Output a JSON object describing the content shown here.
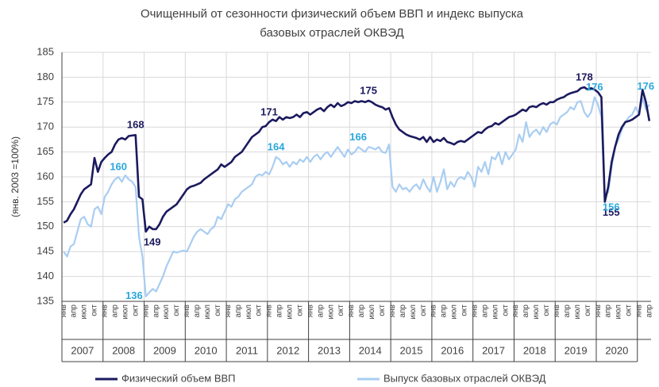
{
  "chart_data": {
    "type": "line",
    "title": [
      "Очищенный от сезонности физический объем ВВП и индекс выпуска",
      "базовых отраслей ОКВЭД"
    ],
    "y_label": "(янв. 2003 =100%)",
    "ylim": [
      135,
      185
    ],
    "yticks": [
      135,
      140,
      145,
      150,
      155,
      160,
      165,
      170,
      175,
      180,
      185
    ],
    "grid": true,
    "years": [
      "2007",
      "2008",
      "2009",
      "2010",
      "2011",
      "2012",
      "2013",
      "2014",
      "2015",
      "2016",
      "2017",
      "2018",
      "2019",
      "2020"
    ],
    "categories": [
      "янв",
      null,
      null,
      "апр",
      null,
      null,
      "июл",
      null,
      null,
      "окт",
      null,
      null,
      "янв",
      null,
      null,
      "апр",
      null,
      null,
      "июл",
      null,
      null,
      "окт",
      null,
      null,
      "янв",
      null,
      null,
      "апр",
      null,
      null,
      "июл",
      null,
      null,
      "окт",
      null,
      null,
      "янв",
      null,
      null,
      "апр",
      null,
      null,
      "июл",
      null,
      null,
      "окт",
      null,
      null,
      "янв",
      null,
      null,
      "апр",
      null,
      null,
      "июл",
      null,
      null,
      "окт",
      null,
      null,
      "янв",
      null,
      null,
      "апр",
      null,
      null,
      "июл",
      null,
      null,
      "окт",
      null,
      null,
      "янв",
      null,
      null,
      "апр",
      null,
      null,
      "июл",
      null,
      null,
      "окт",
      null,
      null,
      "янв",
      null,
      null,
      "апр",
      null,
      null,
      "июл",
      null,
      null,
      "окт",
      null,
      null,
      "янв",
      null,
      null,
      "апр",
      null,
      null,
      "июл",
      null,
      null,
      "окт",
      null,
      null,
      "янв",
      null,
      null,
      "апр",
      null,
      null,
      "июл",
      null,
      null,
      "окт",
      null,
      null,
      "янв",
      null,
      null,
      "апр",
      null,
      null,
      "июл",
      null,
      null,
      "окт",
      null,
      null,
      "янв",
      null,
      null,
      "апр",
      null,
      null,
      "июл",
      null,
      null,
      "окт",
      null,
      null,
      "янв",
      null,
      null,
      "апр",
      null,
      null,
      "июл",
      null,
      null,
      "окт",
      null,
      null,
      "янв",
      null,
      null,
      "апр",
      null,
      null,
      "июл",
      null,
      null,
      "окт",
      null,
      null,
      "янв",
      null,
      null,
      "апр"
    ],
    "series": [
      {
        "name": "Физический объем ВВП",
        "color": "#1b1a5e",
        "label_color": "#1b1a5e",
        "values": [
          150.8,
          151.2,
          152.5,
          153.5,
          155,
          156.5,
          157.5,
          158,
          158.5,
          163.8,
          161,
          163,
          163.8,
          164.5,
          165,
          166.5,
          167.5,
          167.8,
          167.5,
          168.2,
          168.3,
          168.4,
          156,
          155.5,
          149,
          150,
          149.5,
          149.5,
          150.5,
          152,
          153,
          153.5,
          154,
          154.5,
          155.5,
          156.5,
          157.5,
          158,
          158.2,
          158.5,
          158.8,
          159.5,
          160,
          160.5,
          161,
          161.5,
          162.5,
          162,
          162.5,
          163,
          164,
          164.5,
          165,
          166,
          167,
          168,
          168.5,
          169,
          170,
          170.2,
          171,
          171.5,
          171.2,
          172,
          171.5,
          172,
          171.8,
          172,
          172.5,
          172,
          172.8,
          173,
          172.5,
          173,
          173.5,
          173.8,
          173.2,
          174,
          174.5,
          174,
          174.8,
          174.2,
          174.5,
          175,
          174.8,
          175.2,
          175,
          175.2,
          175,
          175.3,
          175,
          174.5,
          174.2,
          174,
          173.5,
          173.8,
          172,
          170.5,
          169.5,
          169,
          168.5,
          168.2,
          168,
          167.8,
          167.5,
          168,
          167,
          168,
          167,
          167.5,
          167.2,
          167.8,
          167,
          166.8,
          166.5,
          167,
          167.2,
          167,
          167.5,
          168,
          168.5,
          169,
          168.8,
          169.5,
          170,
          170.2,
          170.8,
          170.5,
          171,
          171.5,
          172,
          172.2,
          172.5,
          173,
          173.5,
          173.2,
          174,
          174.2,
          174,
          174.5,
          174.8,
          174.5,
          175,
          175,
          175.5,
          175.8,
          176,
          176.5,
          176.8,
          177,
          177.2,
          177.8,
          178,
          177.5,
          177.8,
          177.5,
          177,
          176,
          155,
          158,
          163,
          166,
          168.5,
          170,
          171,
          171.2,
          171.5,
          172,
          172.5,
          177.5,
          175,
          171.2
        ],
        "value_labels": [
          null,
          null,
          null,
          null,
          null,
          null,
          null,
          null,
          null,
          null,
          null,
          null,
          null,
          null,
          null,
          null,
          null,
          null,
          null,
          null,
          null,
          "168",
          null,
          null,
          "149",
          null,
          null,
          null,
          null,
          null,
          null,
          null,
          null,
          null,
          null,
          null,
          null,
          null,
          null,
          null,
          null,
          null,
          null,
          null,
          null,
          null,
          null,
          null,
          null,
          null,
          null,
          null,
          null,
          null,
          null,
          null,
          null,
          null,
          null,
          null,
          "171",
          null,
          null,
          null,
          null,
          null,
          null,
          null,
          null,
          null,
          null,
          null,
          null,
          null,
          null,
          null,
          null,
          null,
          null,
          null,
          null,
          null,
          null,
          null,
          null,
          null,
          null,
          null,
          null,
          "175",
          null,
          null,
          null,
          null,
          null,
          null,
          null,
          null,
          null,
          null,
          null,
          null,
          null,
          null,
          null,
          null,
          null,
          null,
          null,
          null,
          null,
          null,
          null,
          null,
          null,
          null,
          null,
          null,
          null,
          null,
          null,
          null,
          null,
          null,
          null,
          null,
          null,
          null,
          null,
          null,
          null,
          null,
          null,
          null,
          null,
          null,
          null,
          null,
          null,
          null,
          null,
          null,
          null,
          null,
          null,
          null,
          null,
          null,
          null,
          null,
          null,
          null,
          "178",
          null,
          null,
          null,
          null,
          null,
          "155",
          null,
          null,
          null,
          null,
          null,
          null,
          null,
          null,
          null,
          null,
          null,
          null,
          null
        ]
      },
      {
        "name": "Выпуск базовых отраслей ОКВЭД",
        "color": "#a9cdf2",
        "label_color": "#2aa7dc",
        "values": [
          145,
          144,
          146,
          146.5,
          149,
          151.5,
          152,
          150.5,
          150,
          153.5,
          154,
          152.5,
          156,
          157,
          158.5,
          159.5,
          160,
          159,
          160.3,
          159.5,
          159,
          158,
          148,
          144,
          136,
          136.8,
          137.5,
          137,
          138.5,
          140,
          142,
          143.5,
          145,
          144.8,
          145,
          145.2,
          145,
          146.5,
          148,
          149,
          149.5,
          149,
          148.5,
          149.5,
          150,
          152,
          151.5,
          153,
          154.5,
          154,
          155.5,
          156,
          157,
          157.5,
          158,
          158.5,
          160,
          160.5,
          160.3,
          161,
          160.5,
          162,
          164,
          163.5,
          162.5,
          163,
          162,
          163,
          162.5,
          163.5,
          163,
          164,
          163,
          164,
          164.5,
          163.5,
          164.5,
          165,
          164,
          165,
          166,
          165,
          164,
          165.5,
          164.5,
          165,
          166,
          165.5,
          165,
          166,
          165.8,
          165.5,
          166,
          165,
          164.8,
          166.5,
          158,
          157,
          158.5,
          157.5,
          157.8,
          157,
          158,
          158.5,
          157.5,
          159.5,
          158,
          157,
          160,
          157,
          159,
          161.5,
          157.5,
          159,
          158,
          159.5,
          160,
          159.5,
          161,
          160,
          158,
          162,
          161,
          163,
          160.5,
          164,
          163.5,
          165,
          162.5,
          165,
          163.5,
          164.5,
          165.5,
          168.5,
          167,
          171,
          168,
          169,
          169.5,
          168.5,
          170,
          169,
          170.5,
          171,
          170.5,
          172,
          172.5,
          173,
          174,
          173.5,
          175,
          175.2,
          173,
          172,
          173,
          176,
          174.5,
          172,
          156,
          157,
          162,
          166,
          167.5,
          169.5,
          171,
          172,
          172.5,
          174,
          172.5,
          175.8,
          173.5,
          174.5
        ],
        "value_labels": [
          null,
          null,
          null,
          null,
          null,
          null,
          null,
          null,
          null,
          null,
          null,
          null,
          null,
          null,
          null,
          null,
          "160",
          null,
          null,
          null,
          null,
          null,
          null,
          null,
          "136",
          null,
          null,
          null,
          null,
          null,
          null,
          null,
          null,
          null,
          null,
          null,
          null,
          null,
          null,
          null,
          null,
          null,
          null,
          null,
          null,
          null,
          null,
          null,
          null,
          null,
          null,
          null,
          null,
          null,
          null,
          null,
          null,
          null,
          null,
          null,
          null,
          null,
          "164",
          null,
          null,
          null,
          null,
          null,
          null,
          null,
          null,
          null,
          null,
          null,
          null,
          null,
          null,
          null,
          null,
          null,
          null,
          null,
          null,
          null,
          null,
          null,
          "166",
          null,
          null,
          null,
          null,
          null,
          null,
          null,
          null,
          null,
          null,
          null,
          null,
          null,
          null,
          null,
          null,
          null,
          null,
          null,
          null,
          null,
          null,
          null,
          null,
          null,
          null,
          null,
          null,
          null,
          null,
          null,
          null,
          null,
          null,
          null,
          null,
          null,
          null,
          null,
          null,
          null,
          null,
          null,
          null,
          null,
          null,
          null,
          null,
          null,
          null,
          null,
          null,
          null,
          null,
          null,
          null,
          null,
          null,
          null,
          null,
          null,
          null,
          null,
          null,
          null,
          null,
          null,
          null,
          "176",
          null,
          null,
          "156",
          null,
          null,
          null,
          null,
          null,
          null,
          null,
          null,
          null,
          null,
          "176",
          null,
          null
        ]
      }
    ]
  }
}
